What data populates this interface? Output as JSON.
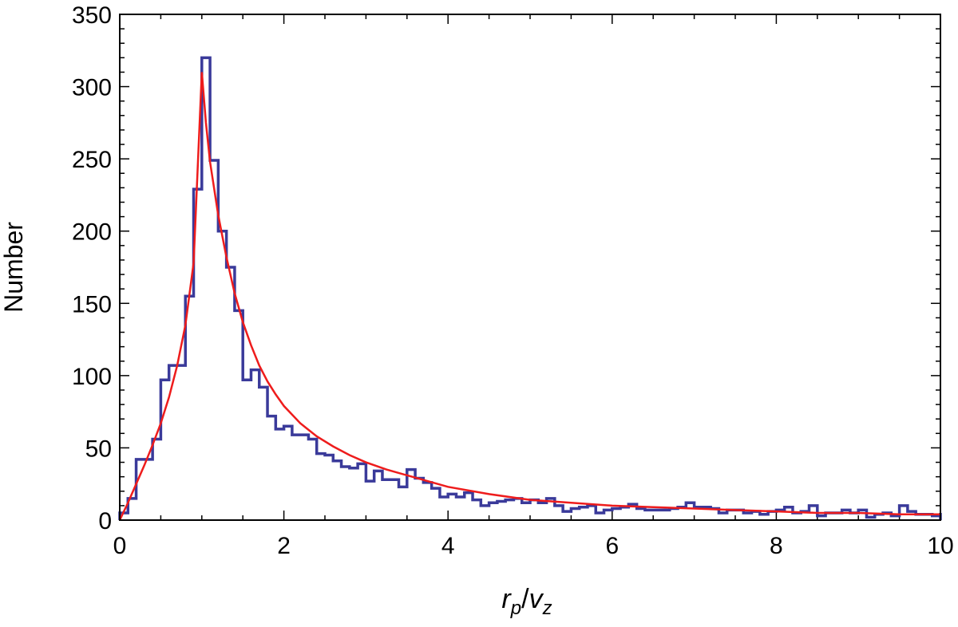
{
  "chart_data": {
    "type": "bar",
    "title": "",
    "ylabel": "Number",
    "xlabel": {
      "base1": "r",
      "sub1": "p",
      "slash": "/",
      "base2": "v",
      "sub2": "z"
    },
    "xlim": [
      0,
      10
    ],
    "ylim": [
      0,
      350
    ],
    "xticks": [
      0,
      2,
      4,
      6,
      8,
      10
    ],
    "yticks": [
      0,
      50,
      100,
      150,
      200,
      250,
      300,
      350
    ],
    "xtick_labels": [
      "0",
      "2",
      "4",
      "6",
      "8",
      "10"
    ],
    "ytick_labels": [
      "0",
      "50",
      "100",
      "150",
      "200",
      "250",
      "300",
      "350"
    ],
    "grid": false,
    "legend": "none",
    "histogram": {
      "name": "",
      "color": "#3a3a9a",
      "bin_width": 0.1,
      "x_start": 0,
      "counts": [
        5,
        15,
        42,
        42,
        56,
        97,
        107,
        107,
        155,
        229,
        320,
        249,
        200,
        175,
        145,
        97,
        104,
        92,
        72,
        63,
        65,
        59,
        59,
        56,
        46,
        45,
        41,
        37,
        36,
        39,
        27,
        34,
        28,
        28,
        23,
        35,
        29,
        26,
        22,
        16,
        18,
        16,
        19,
        14,
        10,
        12,
        13,
        14,
        15,
        12,
        14,
        12,
        15,
        10,
        6,
        8,
        9,
        10,
        5,
        7,
        8,
        9,
        11,
        8,
        7,
        7,
        7,
        8,
        9,
        12,
        9,
        9,
        8,
        5,
        7,
        7,
        5,
        6,
        4,
        6,
        7,
        9,
        5,
        6,
        10,
        3,
        5,
        5,
        7,
        5,
        7,
        2,
        4,
        5,
        3,
        10,
        6,
        4,
        4,
        3,
        5
      ]
    },
    "fit_curve": {
      "name": "",
      "color": "#ee1c1c",
      "x": [
        0,
        0.1,
        0.2,
        0.3,
        0.4,
        0.5,
        0.6,
        0.7,
        0.8,
        0.9,
        1.0,
        1.05,
        1.1,
        1.2,
        1.3,
        1.4,
        1.5,
        1.6,
        1.7,
        1.8,
        1.9,
        2.0,
        2.2,
        2.4,
        2.6,
        2.8,
        3.0,
        3.25,
        3.5,
        3.75,
        4.0,
        4.5,
        5.0,
        5.5,
        6.0,
        6.5,
        7.0,
        7.5,
        8.0,
        8.5,
        9.0,
        9.5,
        10.0
      ],
      "y": [
        0,
        12,
        25,
        38,
        52,
        67,
        85,
        107,
        135,
        178,
        310,
        275,
        248,
        211,
        182,
        157,
        137,
        121,
        107,
        96,
        87,
        79,
        67,
        58,
        51,
        45,
        40,
        35,
        31,
        27,
        23,
        18,
        14,
        12,
        10,
        9,
        8,
        7,
        6,
        5,
        5,
        4,
        4
      ]
    }
  }
}
